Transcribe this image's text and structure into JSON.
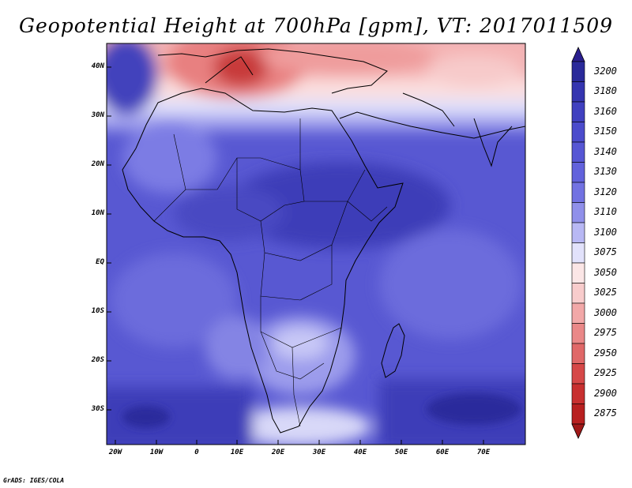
{
  "title": "Geopotential Height at 700hPa [gpm], VT: 2017011509",
  "lat_labels": [
    "40N",
    "30N",
    "20N",
    "10N",
    "EQ",
    "10S",
    "20S",
    "30S"
  ],
  "lon_labels": [
    "20W",
    "10W",
    "0",
    "10E",
    "20E",
    "30E",
    "40E",
    "50E",
    "60E",
    "70E"
  ],
  "colorbar": {
    "levels": [
      "3200",
      "3180",
      "3160",
      "3150",
      "3140",
      "3130",
      "3120",
      "3110",
      "3100",
      "3075",
      "3050",
      "3025",
      "3000",
      "2975",
      "2950",
      "2925",
      "2900",
      "2875"
    ],
    "colors": [
      "#2a2a9a",
      "#3535b0",
      "#4040c0",
      "#4b4bcc",
      "#5656d4",
      "#6262dc",
      "#7272e2",
      "#9090ea",
      "#b8b8f4",
      "#e2e2fb",
      "#fbe6e6",
      "#f8cccc",
      "#f2a8a8",
      "#ea8888",
      "#e06868",
      "#d64848",
      "#c83030",
      "#b82020"
    ],
    "arrow_top_color": "#2a1e8e",
    "arrow_bottom_color": "#a01818"
  },
  "footer": "GrADS: IGES/COLA"
}
